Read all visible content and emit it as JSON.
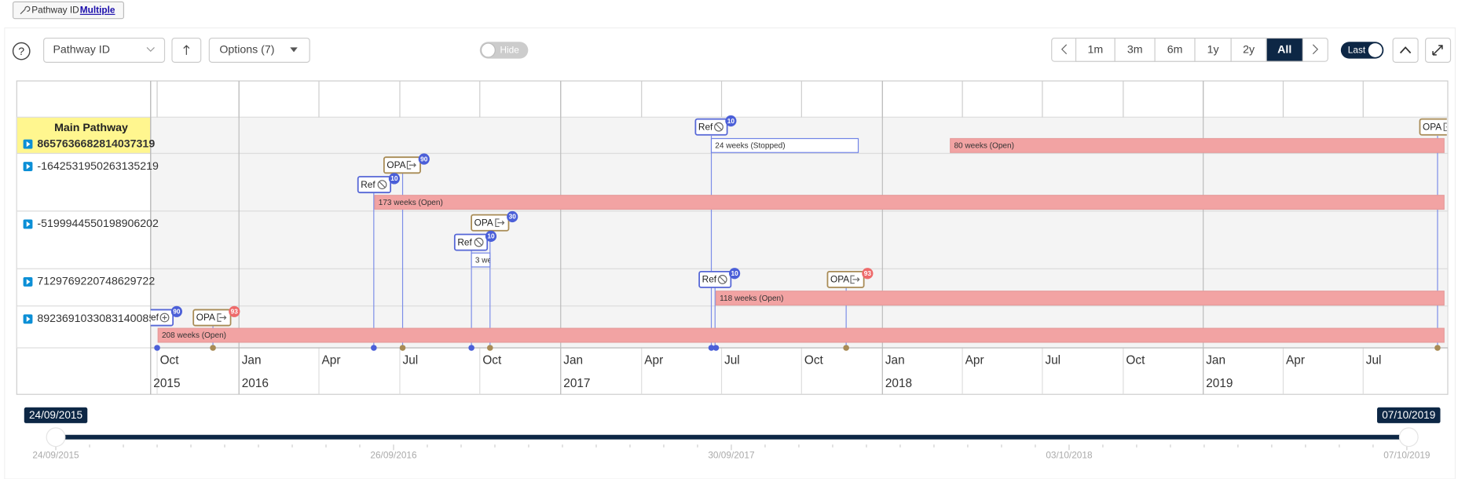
{
  "filter_chip": {
    "label": "Pathway ID",
    "value": "Multiple"
  },
  "toolbar": {
    "help": "?",
    "group_by": "Pathway ID",
    "options": "Options (7)",
    "hide_toggle": "Hide",
    "ranges": [
      "1m",
      "3m",
      "6m",
      "1y",
      "2y",
      "All"
    ],
    "last_toggle": "Last"
  },
  "timeline": {
    "rows": [
      {
        "title": "Main Pathway",
        "id": "8657636682814037319",
        "events": [
          {
            "label": "Ref",
            "badge": 10
          },
          {
            "label": "OPA"
          }
        ],
        "bars": [
          "24 weeks (Stopped)",
          "80 weeks (Open)"
        ]
      },
      {
        "id": "-1642531950263135219",
        "events": [
          {
            "label": "OPA",
            "badge": 90
          },
          {
            "label": "Ref",
            "badge": 10
          }
        ],
        "bars": [
          "173 weeks (Open)"
        ]
      },
      {
        "id": "-5199944550198906202",
        "events": [
          {
            "label": "OPA",
            "badge": 30
          },
          {
            "label": "Ref",
            "badge": 10
          }
        ],
        "bars": [
          "3 we"
        ]
      },
      {
        "id": "7129769220748629722",
        "events": [
          {
            "label": "Ref",
            "badge": 10
          },
          {
            "label": "OPA",
            "badge": 93
          }
        ],
        "bars": [
          "118 weeks (Open)"
        ]
      },
      {
        "id": "8923691033083140085",
        "events": [
          {
            "label": "Ref",
            "badge": 90
          },
          {
            "label": "OPA",
            "badge": 93
          }
        ],
        "bars": [
          "208 weeks (Open)"
        ]
      }
    ],
    "months": [
      "Oct",
      "Jan",
      "Apr",
      "Jul",
      "Oct",
      "Jan",
      "Apr",
      "Jul",
      "Oct",
      "Jan",
      "Apr",
      "Jul",
      "Oct",
      "Jan",
      "Apr",
      "Jul"
    ],
    "years": [
      "2015",
      "2016",
      "2017",
      "2018",
      "2019"
    ]
  },
  "range_slider": {
    "start": "24/09/2015",
    "end": "07/10/2019",
    "ticks": [
      "24/09/2015",
      "26/09/2016",
      "30/09/2017",
      "03/10/2018",
      "07/10/2019"
    ]
  }
}
